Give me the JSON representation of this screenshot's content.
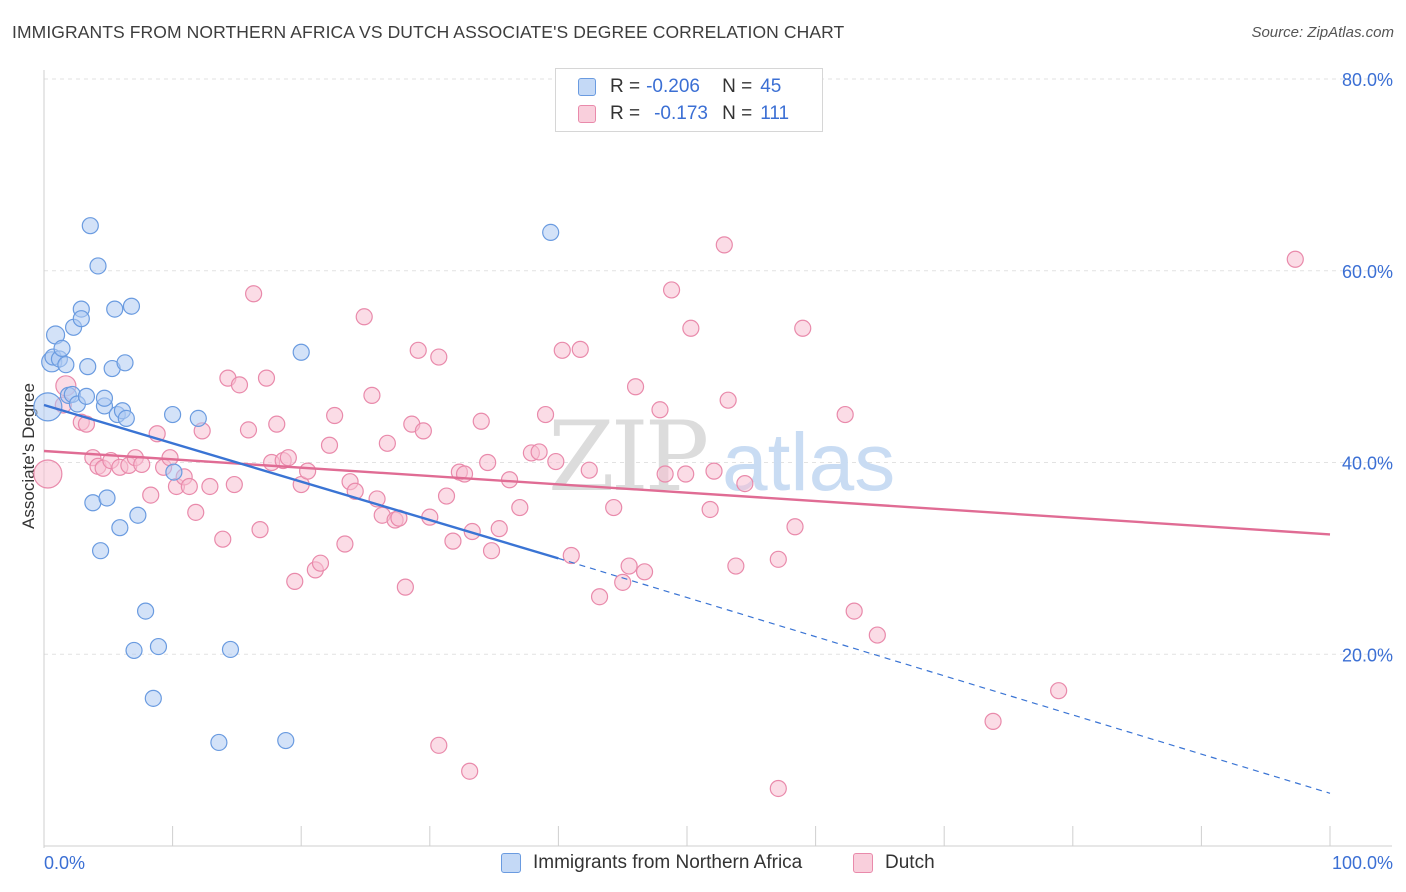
{
  "header": {
    "title": "IMMIGRANTS FROM NORTHERN AFRICA VS DUTCH ASSOCIATE'S DEGREE CORRELATION CHART",
    "source": "Source: ZipAtlas.com"
  },
  "watermark": {
    "zip": "ZIP",
    "atlas": "atlas"
  },
  "legend": {
    "rows": [
      {
        "r_label": "R =",
        "r_value": "-0.206",
        "n_label": "N =",
        "n_value": "45"
      },
      {
        "r_label": "R =",
        "r_value": "-0.173",
        "n_label": "N =",
        "n_value": "111"
      }
    ]
  },
  "bottom_legend": {
    "items": [
      {
        "label": "Immigrants from Northern Africa"
      },
      {
        "label": "Dutch"
      }
    ]
  },
  "colors": {
    "blue_fill": "#aecbf2",
    "blue_stroke": "#6a9be0",
    "blue_line": "#3a74d4",
    "pink_fill": "#f7bfd1",
    "pink_stroke": "#e98aab",
    "pink_line": "#e06c94",
    "axis_text": "#3b6fd4",
    "grid": "#e2e2e2"
  },
  "chart_data": {
    "type": "scatter",
    "title": "IMMIGRANTS FROM NORTHERN AFRICA VS DUTCH ASSOCIATE'S DEGREE CORRELATION CHART",
    "xlabel": "",
    "ylabel": "Associate's Degree",
    "xlim": [
      0,
      100
    ],
    "ylim": [
      0,
      80
    ],
    "x_tick_labels": [
      "0.0%",
      "100.0%"
    ],
    "y_ticks": [
      20,
      40,
      60,
      80
    ],
    "y_tick_labels": [
      "20.0%",
      "40.0%",
      "60.0%",
      "80.0%"
    ],
    "series": [
      {
        "name": "Immigrants from Northern Africa",
        "R": -0.206,
        "N": 45,
        "trend": {
          "x": [
            0,
            40
          ],
          "y": [
            46,
            30
          ]
        },
        "trend_extension": {
          "x": [
            40,
            100
          ],
          "y": [
            30,
            5.5
          ]
        },
        "points": [
          [
            0.3,
            45.8,
            14
          ],
          [
            0.6,
            50.5,
            10
          ],
          [
            0.9,
            53.3,
            9
          ],
          [
            0.7,
            51.0,
            8
          ],
          [
            1.2,
            50.8,
            8
          ],
          [
            1.4,
            51.9,
            8
          ],
          [
            1.7,
            50.2,
            8
          ],
          [
            1.9,
            47.0,
            8
          ],
          [
            2.2,
            47.1,
            8
          ],
          [
            2.3,
            54.1,
            8
          ],
          [
            2.6,
            46.1,
            8
          ],
          [
            2.9,
            56.0,
            8
          ],
          [
            2.9,
            55.0,
            8
          ],
          [
            3.3,
            46.9,
            8
          ],
          [
            3.4,
            50.0,
            8
          ],
          [
            3.6,
            64.7,
            8
          ],
          [
            3.8,
            35.8,
            8
          ],
          [
            4.2,
            60.5,
            8
          ],
          [
            4.4,
            30.8,
            8
          ],
          [
            4.7,
            45.9,
            8
          ],
          [
            4.7,
            46.7,
            8
          ],
          [
            4.9,
            36.3,
            8
          ],
          [
            5.3,
            49.8,
            8
          ],
          [
            5.5,
            56.0,
            8
          ],
          [
            5.7,
            45.0,
            8
          ],
          [
            5.9,
            33.2,
            8
          ],
          [
            6.1,
            45.4,
            8
          ],
          [
            6.3,
            50.4,
            8
          ],
          [
            6.4,
            44.6,
            8
          ],
          [
            6.8,
            56.3,
            8
          ],
          [
            7.0,
            20.4,
            8
          ],
          [
            7.3,
            34.5,
            8
          ],
          [
            7.9,
            24.5,
            8
          ],
          [
            8.5,
            15.4,
            8
          ],
          [
            8.9,
            20.8,
            8
          ],
          [
            10.0,
            45.0,
            8
          ],
          [
            10.1,
            39.0,
            8
          ],
          [
            12.0,
            44.6,
            8
          ],
          [
            13.6,
            10.8,
            8
          ],
          [
            14.5,
            20.5,
            8
          ],
          [
            18.8,
            11.0,
            8
          ],
          [
            20.0,
            51.5,
            8
          ],
          [
            39.4,
            64.0,
            8
          ]
        ]
      },
      {
        "name": "Dutch",
        "R": -0.173,
        "N": 111,
        "trend": {
          "x": [
            0,
            100
          ],
          "y": [
            41.2,
            32.5
          ]
        },
        "points": [
          [
            0.3,
            38.8,
            14
          ],
          [
            1.7,
            48.0,
            10
          ],
          [
            1.5,
            46.0,
            8
          ],
          [
            2.9,
            44.2,
            8
          ],
          [
            3.3,
            44.0,
            8
          ],
          [
            3.8,
            40.5,
            8
          ],
          [
            4.2,
            39.6,
            8
          ],
          [
            4.6,
            39.4,
            8
          ],
          [
            5.2,
            40.2,
            8
          ],
          [
            5.9,
            39.5,
            8
          ],
          [
            6.6,
            39.7,
            8
          ],
          [
            7.1,
            40.5,
            8
          ],
          [
            7.6,
            39.8,
            8
          ],
          [
            8.3,
            36.6,
            8
          ],
          [
            8.8,
            43.0,
            8
          ],
          [
            9.3,
            39.5,
            8
          ],
          [
            9.8,
            40.5,
            8
          ],
          [
            10.3,
            37.5,
            8
          ],
          [
            10.9,
            38.5,
            8
          ],
          [
            11.3,
            37.5,
            8
          ],
          [
            11.8,
            34.8,
            8
          ],
          [
            12.3,
            43.3,
            8
          ],
          [
            12.9,
            37.5,
            8
          ],
          [
            13.9,
            32.0,
            8
          ],
          [
            14.3,
            48.8,
            8
          ],
          [
            14.8,
            37.7,
            8
          ],
          [
            15.2,
            48.1,
            8
          ],
          [
            15.9,
            43.4,
            8
          ],
          [
            16.3,
            57.6,
            8
          ],
          [
            16.8,
            33.0,
            8
          ],
          [
            17.3,
            48.8,
            8
          ],
          [
            17.7,
            40.0,
            8
          ],
          [
            18.1,
            44.0,
            8
          ],
          [
            18.6,
            40.2,
            8
          ],
          [
            19.0,
            40.5,
            8
          ],
          [
            19.5,
            27.6,
            8
          ],
          [
            20.0,
            37.7,
            8
          ],
          [
            20.5,
            39.1,
            8
          ],
          [
            21.1,
            28.8,
            8
          ],
          [
            21.5,
            29.5,
            8
          ],
          [
            22.2,
            41.8,
            8
          ],
          [
            22.6,
            44.9,
            8
          ],
          [
            23.4,
            31.5,
            8
          ],
          [
            23.8,
            38.0,
            8
          ],
          [
            24.2,
            37.0,
            8
          ],
          [
            24.9,
            55.2,
            8
          ],
          [
            25.5,
            47.0,
            8
          ],
          [
            25.9,
            36.2,
            8
          ],
          [
            26.3,
            34.5,
            8
          ],
          [
            26.7,
            42.0,
            8
          ],
          [
            27.3,
            34.0,
            8
          ],
          [
            27.6,
            34.2,
            8
          ],
          [
            28.1,
            27.0,
            8
          ],
          [
            28.6,
            44.0,
            8
          ],
          [
            29.1,
            51.7,
            8
          ],
          [
            29.5,
            43.3,
            8
          ],
          [
            30.0,
            34.3,
            8
          ],
          [
            30.7,
            51.0,
            8
          ],
          [
            31.3,
            36.5,
            8
          ],
          [
            31.8,
            31.8,
            8
          ],
          [
            32.3,
            39.0,
            8
          ],
          [
            32.7,
            38.8,
            8
          ],
          [
            33.3,
            32.8,
            8
          ],
          [
            34.0,
            44.3,
            8
          ],
          [
            34.5,
            40.0,
            8
          ],
          [
            34.8,
            30.8,
            8
          ],
          [
            35.4,
            33.1,
            8
          ],
          [
            36.2,
            38.2,
            8
          ],
          [
            37.0,
            35.3,
            8
          ],
          [
            37.9,
            41.0,
            8
          ],
          [
            38.5,
            41.1,
            8
          ],
          [
            39.0,
            45.0,
            8
          ],
          [
            39.8,
            40.1,
            8
          ],
          [
            40.3,
            51.7,
            8
          ],
          [
            41.0,
            30.3,
            8
          ],
          [
            41.7,
            51.8,
            8
          ],
          [
            42.4,
            39.2,
            8
          ],
          [
            43.2,
            26.0,
            8
          ],
          [
            44.3,
            35.3,
            8
          ],
          [
            45.0,
            27.5,
            8
          ],
          [
            45.5,
            29.2,
            8
          ],
          [
            46.0,
            47.9,
            8
          ],
          [
            46.7,
            28.6,
            8
          ],
          [
            47.9,
            45.5,
            8
          ],
          [
            48.3,
            38.8,
            8
          ],
          [
            48.8,
            58.0,
            8
          ],
          [
            49.9,
            38.8,
            8
          ],
          [
            50.3,
            54.0,
            8
          ],
          [
            51.8,
            35.1,
            8
          ],
          [
            52.1,
            39.1,
            8
          ],
          [
            52.9,
            62.7,
            8
          ],
          [
            53.2,
            46.5,
            8
          ],
          [
            53.8,
            29.2,
            8
          ],
          [
            54.5,
            37.8,
            8
          ],
          [
            57.1,
            29.9,
            8
          ],
          [
            58.4,
            33.3,
            8
          ],
          [
            59.0,
            54.0,
            8
          ],
          [
            62.3,
            45.0,
            8
          ],
          [
            63.0,
            24.5,
            8
          ],
          [
            64.8,
            22.0,
            8
          ],
          [
            73.8,
            13.0,
            8
          ],
          [
            78.9,
            16.2,
            8
          ],
          [
            97.3,
            61.2,
            8
          ],
          [
            33.1,
            7.8,
            8
          ],
          [
            30.7,
            10.5,
            8
          ],
          [
            57.1,
            6.0,
            8
          ]
        ]
      }
    ]
  }
}
